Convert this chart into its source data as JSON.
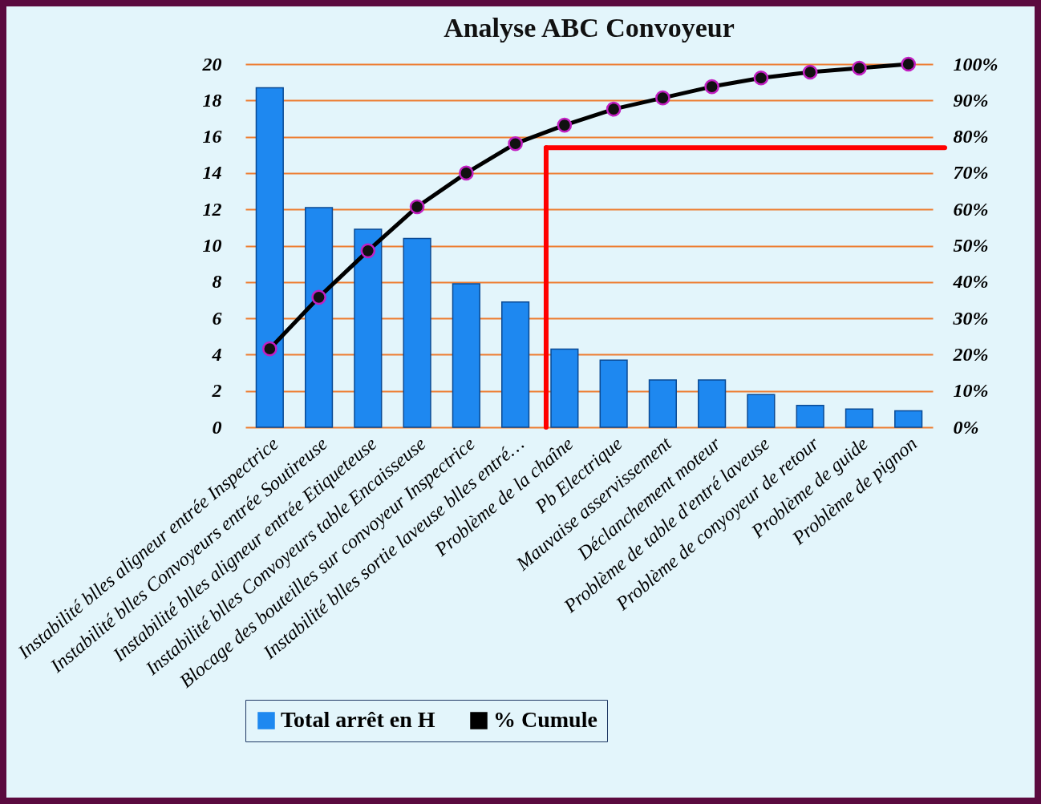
{
  "chart_data": {
    "type": "bar",
    "title": "Analyse ABC Convoyeur",
    "categories": [
      "Instabilité blles aligneur entrée Inspectrice",
      "Instabilité blles Convoyeurs entrée Soutireuse",
      "Instabilité blles aligneur entrée Etiqueteuse",
      "Instabilité blles Convoyeurs table Encaisseuse",
      "Blocage des bouteilles sur convoyeur Inspectrice",
      "Instabilité blles sortie laveuse blles entré…",
      "Problème de la chaîne",
      "Pb Electrique",
      "Mauvaise asservissement",
      "Déclanchement moteur",
      "Problème de table d'entré laveuse",
      "Problème de conyoyeur de retour",
      "Problème de guide",
      "Problème de pignon"
    ],
    "series": [
      {
        "name": "Total arrêt en H",
        "color": "#1e88f0",
        "values": [
          18.7,
          12.1,
          10.9,
          10.4,
          7.9,
          6.9,
          4.3,
          3.7,
          2.6,
          2.6,
          1.8,
          1.2,
          1.0,
          0.9
        ]
      },
      {
        "name": "% Cumule",
        "type": "line",
        "axis": "y2",
        "color": "#000000",
        "values": [
          21.6,
          35.8,
          48.6,
          60.7,
          70,
          78.1,
          83.2,
          87.6,
          90.7,
          93.8,
          96.2,
          97.8,
          98.9,
          100
        ]
      }
    ],
    "ylim": [
      0,
      20
    ],
    "yticks": [
      0,
      2,
      4,
      6,
      8,
      10,
      12,
      14,
      16,
      18,
      20
    ],
    "y2lim": [
      0,
      100
    ],
    "y2ticks": [
      {
        "value": 0,
        "label": "0%"
      },
      {
        "value": 10,
        "label": "10%"
      },
      {
        "value": 20,
        "label": "20%"
      },
      {
        "value": 30,
        "label": "30%"
      },
      {
        "value": 40,
        "label": "40%"
      },
      {
        "value": 50,
        "label": "50%"
      },
      {
        "value": 60,
        "label": "60%"
      },
      {
        "value": 70,
        "label": "70%"
      },
      {
        "value": 80,
        "label": "80%"
      },
      {
        "value": 90,
        "label": "90%"
      },
      {
        "value": 100,
        "label": "100%"
      }
    ],
    "grid": "y",
    "legend": "bottom",
    "marker": "circle",
    "ref_lines": [
      {
        "axis": "y2",
        "value": 77,
        "color": "#ff0000"
      },
      {
        "axis": "x",
        "value": "Problème de la chaîne",
        "color": "#ff0000"
      }
    ]
  }
}
